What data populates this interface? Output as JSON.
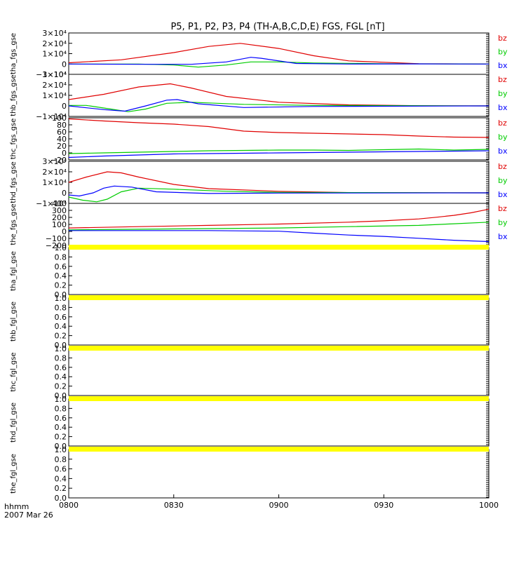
{
  "title": "P5, P1, P2, P3, P4 (TH-A,B,C,D,E) FGS, FGL [nT]",
  "footer": {
    "label_line1": "hhmm",
    "label_line2": "2007 Mar 26"
  },
  "colors": {
    "bx": "#0000ff",
    "by": "#00cc00",
    "bz": "#e00000",
    "fill": "#ffff00",
    "axis": "#000000"
  },
  "chart_data": {
    "type": "line",
    "title": "P5, P1, P2, P3, P4 (TH-A,B,C,D,E) FGS, FGL [nT]",
    "xlabel": "hhmm",
    "date": "2007 Mar 26",
    "xlim": [
      "0800",
      "1000"
    ],
    "xtick_labels": [
      "0800",
      "0830",
      "0900",
      "0930",
      "1000"
    ],
    "panels": [
      {
        "ylabel": "tha_fgs_gse",
        "ylim": [
          -10000,
          30000
        ],
        "ytick_labels": [
          "3×10⁴",
          "2×10⁴",
          "1×10⁴",
          "0",
          "−1×10⁴"
        ],
        "legend": [
          "bz",
          "by",
          "bx"
        ],
        "series": [
          {
            "name": "bz",
            "x": [
              0,
              15,
              30,
              40,
              49,
              60,
              70,
              80,
              100,
              120
            ],
            "y": [
              1200,
              4000,
              11000,
              17000,
              20000,
              15000,
              8000,
              3000,
              300,
              0
            ]
          },
          {
            "name": "by",
            "x": [
              0,
              20,
              30,
              37,
              45,
              52,
              60,
              70,
              90,
              120
            ],
            "y": [
              0,
              0,
              -1000,
              -3000,
              -1000,
              2000,
              2000,
              1000,
              300,
              0
            ]
          },
          {
            "name": "bx",
            "x": [
              0,
              20,
              35,
              45,
              52,
              55,
              65,
              80,
              100,
              120
            ],
            "y": [
              0,
              -300,
              -300,
              2000,
              6500,
              5500,
              500,
              0,
              100,
              0
            ]
          }
        ]
      },
      {
        "ylabel": "thb_fgs_gse",
        "ylim": [
          -10000,
          30000
        ],
        "ytick_labels": [
          "3×10⁴",
          "2×10⁴",
          "1×10⁴",
          "0",
          "−1×10⁴"
        ],
        "legend": [
          "bz",
          "by",
          "bx"
        ],
        "series": [
          {
            "name": "bz",
            "x": [
              0,
              10,
              20,
              29,
              35,
              45,
              60,
              80,
              100,
              120
            ],
            "y": [
              6000,
              11000,
              18000,
              21000,
              17000,
              9000,
              3500,
              1000,
              200,
              0
            ]
          },
          {
            "name": "by",
            "x": [
              0,
              5,
              12,
              17,
              22,
              28,
              35,
              50,
              70,
              120
            ],
            "y": [
              500,
              500,
              -3000,
              -5500,
              -3000,
              2500,
              3500,
              1500,
              500,
              0
            ]
          },
          {
            "name": "bx",
            "x": [
              0,
              10,
              16,
              22,
              28,
              31,
              37,
              50,
              70,
              120
            ],
            "y": [
              0,
              -3500,
              -5000,
              0,
              5500,
              6000,
              2000,
              -1500,
              -500,
              0
            ]
          }
        ]
      },
      {
        "ylabel": "thc_fgs_gse",
        "ylim": [
          -20,
          100
        ],
        "ytick_labels": [
          "100",
          "80",
          "60",
          "40",
          "20",
          "0",
          "−20"
        ],
        "legend": [
          "bz",
          "by",
          "bx"
        ],
        "series": [
          {
            "name": "bz",
            "x": [
              0,
              10,
              20,
              30,
              40,
              50,
              60,
              70,
              80,
              90,
              100,
              110,
              120
            ],
            "y": [
              97,
              91,
              86,
              82,
              75,
              62,
              58,
              56,
              54,
              52,
              48,
              45,
              44
            ]
          },
          {
            "name": "by",
            "x": [
              0,
              10,
              20,
              30,
              40,
              50,
              60,
              70,
              80,
              90,
              100,
              110,
              120
            ],
            "y": [
              -2,
              0,
              2,
              4,
              6,
              7,
              8,
              8,
              7,
              9,
              11,
              8,
              10
            ]
          },
          {
            "name": "bx",
            "x": [
              0,
              10,
              20,
              30,
              40,
              50,
              60,
              70,
              80,
              90,
              100,
              110,
              120
            ],
            "y": [
              -13,
              -9,
              -6,
              -3,
              -2,
              -1,
              0,
              1,
              2,
              3,
              4,
              5,
              6
            ]
          }
        ]
      },
      {
        "ylabel": "thd_fgs_gse",
        "ylim": [
          -10000,
          30000
        ],
        "ytick_labels": [
          "3×10⁴",
          "2×10⁴",
          "1×10⁴",
          "0",
          "−1×10⁴"
        ],
        "legend": [
          "bz",
          "by",
          "bx"
        ],
        "series": [
          {
            "name": "bz",
            "x": [
              0,
              5,
              11,
              15,
              20,
              30,
              40,
              60,
              80,
              120
            ],
            "y": [
              10000,
              15000,
              20000,
              19000,
              15000,
              8000,
              4000,
              1500,
              300,
              0
            ]
          },
          {
            "name": "by",
            "x": [
              0,
              4,
              8,
              11,
              15,
              20,
              30,
              45,
              60,
              120
            ],
            "y": [
              -4000,
              -7000,
              -8500,
              -6000,
              1000,
              4500,
              3500,
              1500,
              500,
              0
            ]
          },
          {
            "name": "bx",
            "x": [
              0,
              3,
              7,
              10,
              13,
              18,
              25,
              40,
              60,
              120
            ],
            "y": [
              -2000,
              -3000,
              0,
              4500,
              6500,
              5500,
              1000,
              -600,
              -200,
              0
            ]
          }
        ]
      },
      {
        "ylabel": "the_fgs_gse",
        "ylim": [
          -250,
          400
        ],
        "ytick_labels": [
          "400",
          "300",
          "200",
          "100",
          "0",
          "−100",
          "−200"
        ],
        "legend": [
          "bz",
          "by",
          "bx"
        ],
        "series": [
          {
            "name": "bz",
            "x": [
              0,
              20,
              40,
              60,
              80,
              90,
              100,
              105,
              110,
              115,
              120
            ],
            "y": [
              20,
              40,
              60,
              80,
              110,
              130,
              160,
              185,
              215,
              255,
              310
            ]
          },
          {
            "name": "by",
            "x": [
              0,
              20,
              40,
              60,
              80,
              100,
              110,
              120
            ],
            "y": [
              -10,
              0,
              10,
              20,
              40,
              60,
              85,
              110
            ]
          },
          {
            "name": "bx",
            "x": [
              0,
              20,
              40,
              60,
              70,
              80,
              90,
              100,
              110,
              120
            ],
            "y": [
              -20,
              -20,
              -20,
              -30,
              -60,
              -90,
              -110,
              -140,
              -170,
              -190
            ]
          }
        ]
      },
      {
        "ylabel": "tha_fgl_gse",
        "ylim": [
          0,
          1
        ],
        "ytick_labels": [
          "1.0",
          "0.8",
          "0.6",
          "0.4",
          "0.2",
          "0.0"
        ],
        "fill_band": true,
        "series": []
      },
      {
        "ylabel": "thb_fgl_gse",
        "ylim": [
          0,
          1
        ],
        "ytick_labels": [
          "1.0",
          "0.8",
          "0.6",
          "0.4",
          "0.2",
          "0.0"
        ],
        "fill_band": true,
        "series": []
      },
      {
        "ylabel": "thc_fgl_gse",
        "ylim": [
          0,
          1
        ],
        "ytick_labels": [
          "1.0",
          "0.8",
          "0.6",
          "0.4",
          "0.2",
          "0.0"
        ],
        "fill_band": true,
        "series": []
      },
      {
        "ylabel": "thd_fgl_gse",
        "ylim": [
          0,
          1
        ],
        "ytick_labels": [
          "1.0",
          "0.8",
          "0.6",
          "0.4",
          "0.2",
          "0.0"
        ],
        "fill_band": true,
        "series": []
      },
      {
        "ylabel": "the_fgl_gse",
        "ylim": [
          0,
          1
        ],
        "ytick_labels": [
          "1.0",
          "0.8",
          "0.6",
          "0.4",
          "0.2",
          "0.0"
        ],
        "fill_band": true,
        "series": []
      }
    ]
  }
}
